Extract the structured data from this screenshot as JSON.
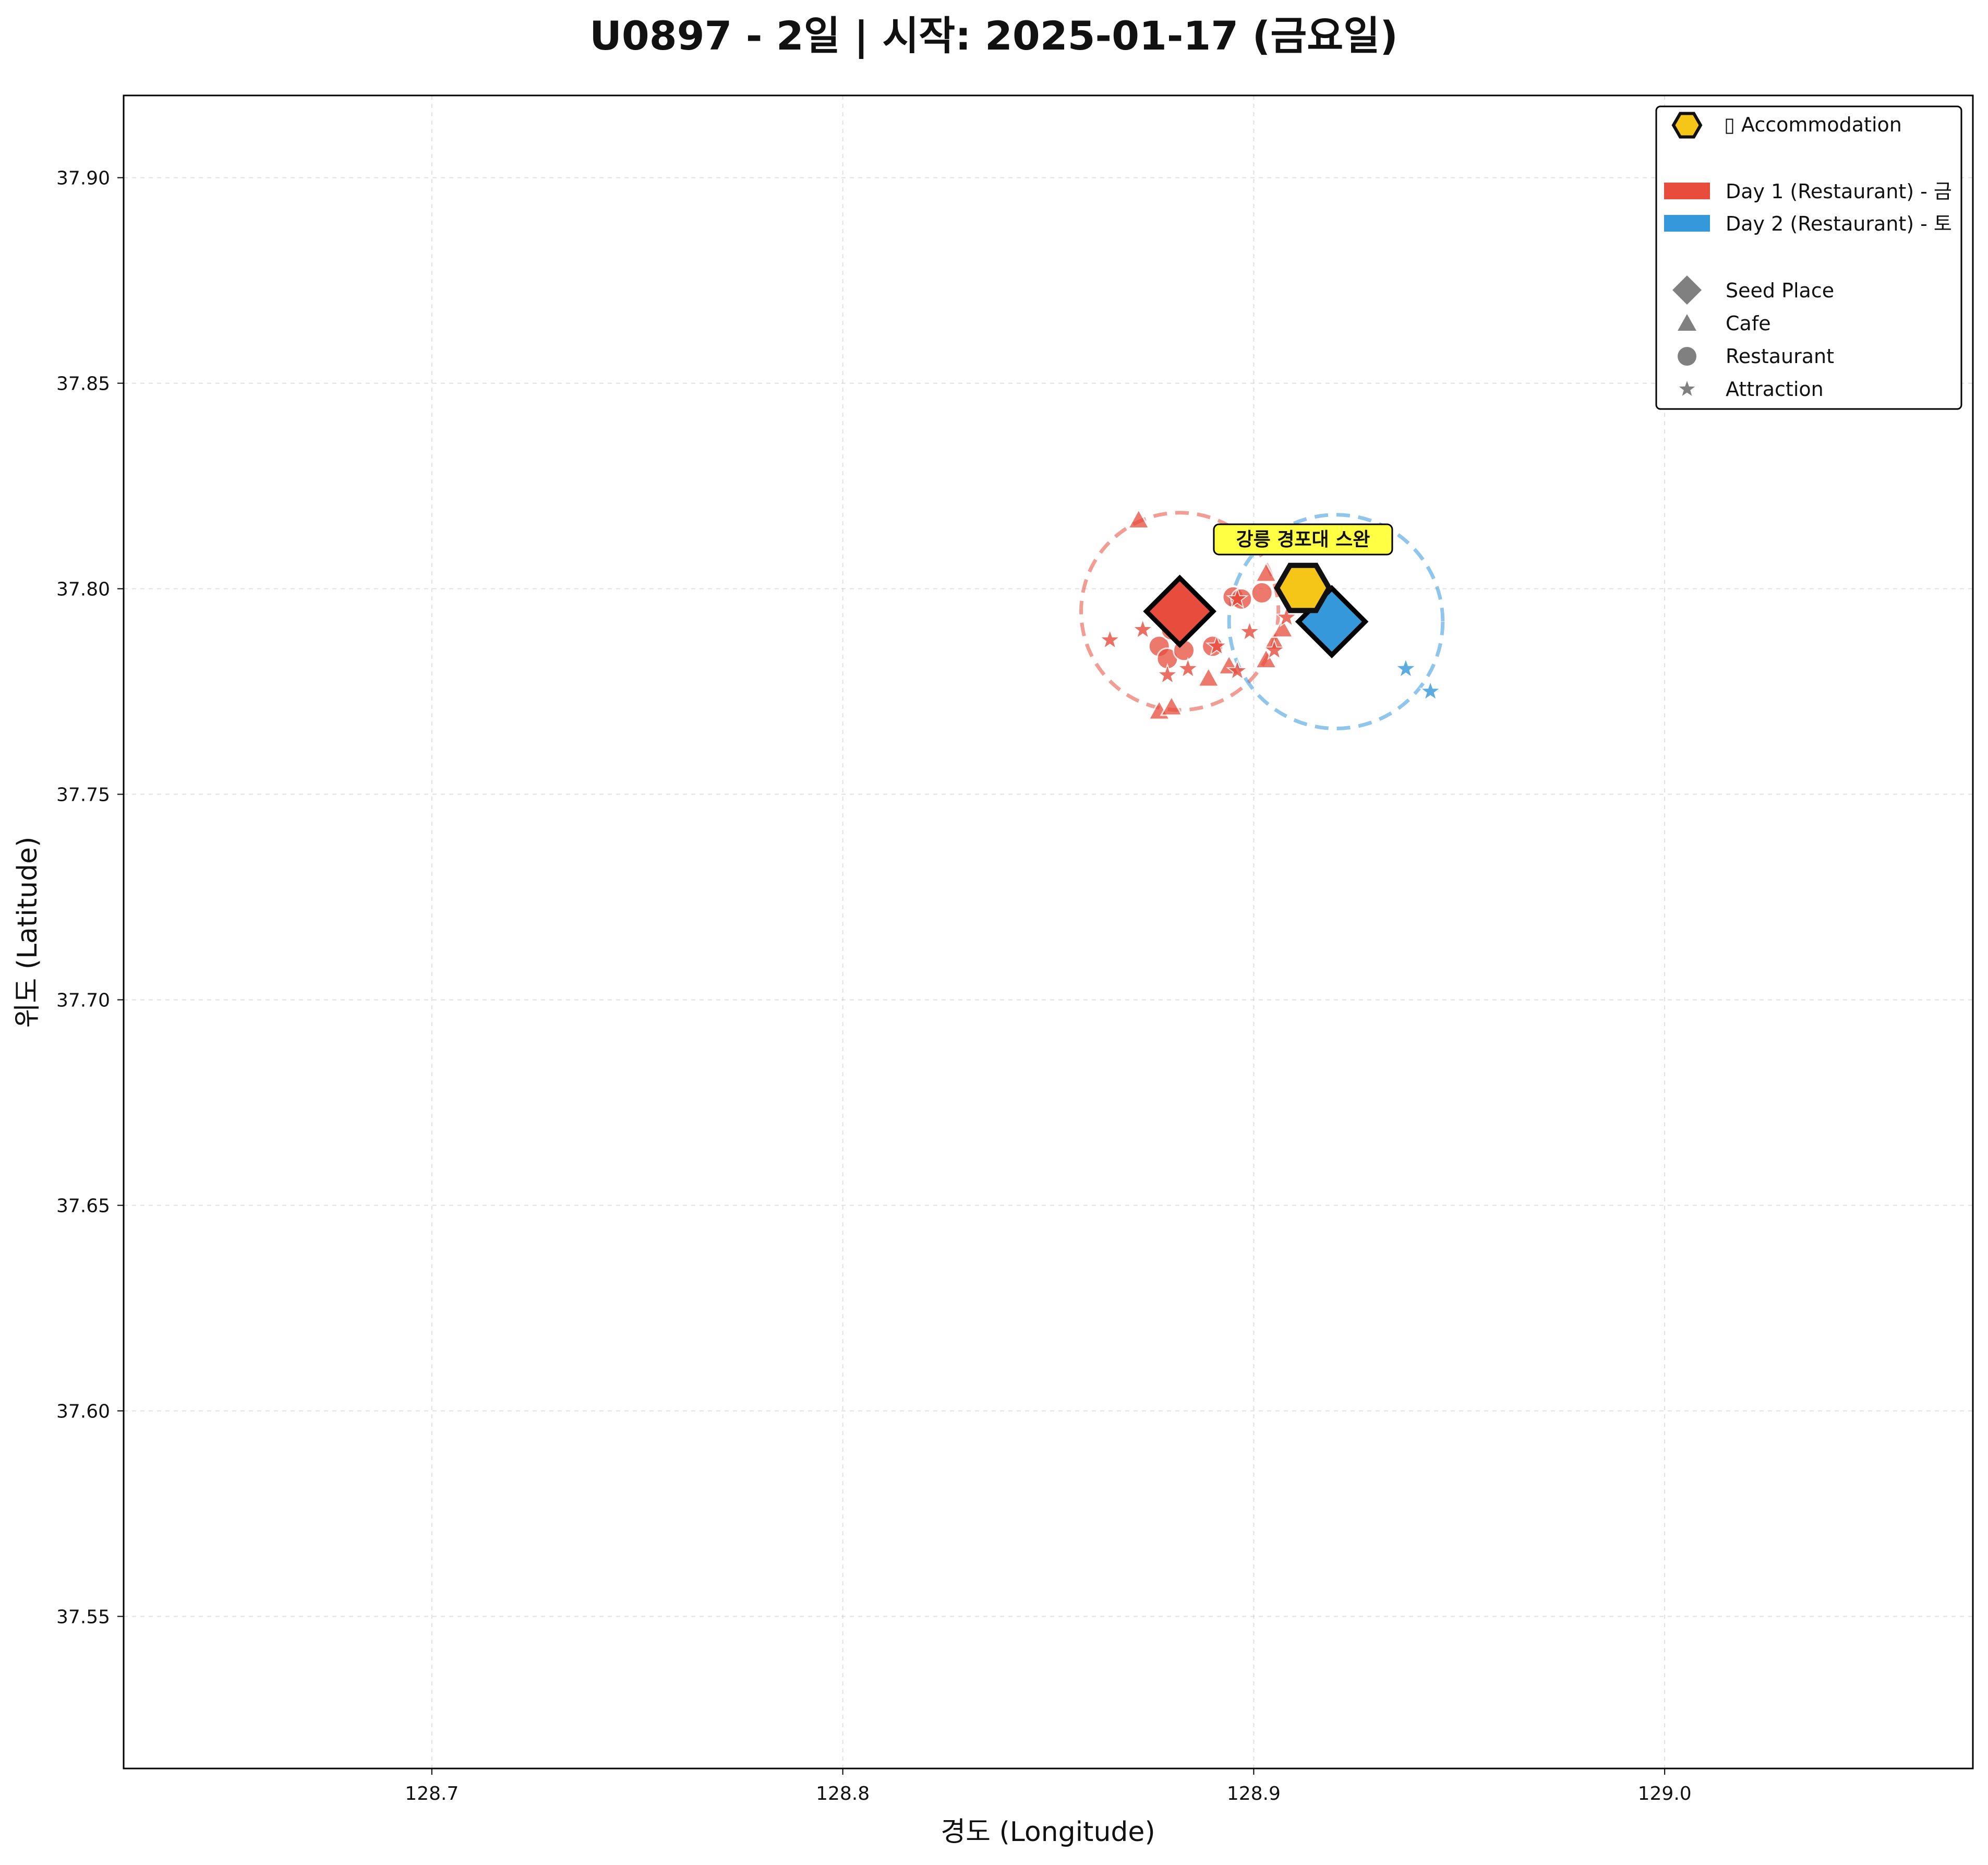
{
  "chart_data": {
    "type": "scatter",
    "title": "U0897 - 2일 | 시작: 2025-01-17 (금요일)",
    "xlabel": "경도 (Longitude)",
    "ylabel": "위도 (Latitude)",
    "xlim": [
      128.625,
      129.075
    ],
    "ylim": [
      37.513,
      37.92
    ],
    "xticks": [
      "128.7",
      "128.8",
      "128.9",
      "129.0"
    ],
    "xtick_values": [
      128.7,
      128.8,
      128.9,
      129.0
    ],
    "yticks": [
      "37.55",
      "37.60",
      "37.65",
      "37.70",
      "37.75",
      "37.80",
      "37.85",
      "37.90"
    ],
    "ytick_values": [
      37.55,
      37.6,
      37.65,
      37.7,
      37.75,
      37.8,
      37.85,
      37.9
    ],
    "grid": true,
    "legend_position": "top-right",
    "legend": {
      "accommodation": "▯ Accommodation",
      "day1": "Day 1 (Restaurant) - 금",
      "day2": "Day 2 (Restaurant) - 토",
      "seed": "Seed Place",
      "cafe": "Cafe",
      "restaurant": "Restaurant",
      "attraction": "Attraction"
    },
    "colors": {
      "day1": "#e74c3c",
      "day2": "#3498db",
      "accommodation": "#f5c518",
      "annotation_bg": "#ffff44",
      "legend_marker": "#808080"
    },
    "accommodation": {
      "name": "강릉 경포대 스완",
      "x": 128.912,
      "y": 37.8002
    },
    "circles": [
      {
        "series": "day1",
        "cx": 128.882,
        "cy": 37.7945,
        "r": 0.024
      },
      {
        "series": "day2",
        "cx": 128.92,
        "cy": 37.792,
        "r": 0.026
      }
    ],
    "series": [
      {
        "name": "Day 1 (Restaurant) - 금",
        "color": "#e74c3c",
        "seed": {
          "x": 128.882,
          "y": 37.7945
        },
        "cafes": [
          [
            128.872,
            37.8165
          ],
          [
            128.877,
            37.77
          ],
          [
            128.88,
            37.771
          ],
          [
            128.889,
            37.778
          ],
          [
            128.894,
            37.781
          ],
          [
            128.903,
            37.7825
          ],
          [
            128.903,
            37.8035
          ],
          [
            128.905,
            37.787
          ],
          [
            128.907,
            37.79
          ],
          [
            128.899,
            37.81
          ]
        ],
        "restaurants": [
          [
            128.877,
            37.786
          ],
          [
            128.879,
            37.783
          ],
          [
            128.883,
            37.785
          ],
          [
            128.89,
            37.786
          ],
          [
            128.895,
            37.798
          ],
          [
            128.897,
            37.7975
          ],
          [
            128.88,
            37.79
          ],
          [
            128.902,
            37.799
          ]
        ],
        "attractions": [
          [
            128.865,
            37.7875
          ],
          [
            128.879,
            37.779
          ],
          [
            128.884,
            37.7805
          ],
          [
            128.891,
            37.786
          ],
          [
            128.896,
            37.78
          ],
          [
            128.899,
            37.7895
          ],
          [
            128.896,
            37.7975
          ],
          [
            128.905,
            37.785
          ],
          [
            128.908,
            37.793
          ],
          [
            128.873,
            37.79
          ]
        ]
      },
      {
        "name": "Day 2 (Restaurant) - 토",
        "color": "#3498db",
        "seed": {
          "x": 128.919,
          "y": 37.792
        },
        "cafes": [],
        "restaurants": [],
        "attractions": [
          [
            128.937,
            37.7805
          ],
          [
            128.943,
            37.775
          ],
          [
            128.91,
            37.796
          ]
        ]
      }
    ]
  }
}
